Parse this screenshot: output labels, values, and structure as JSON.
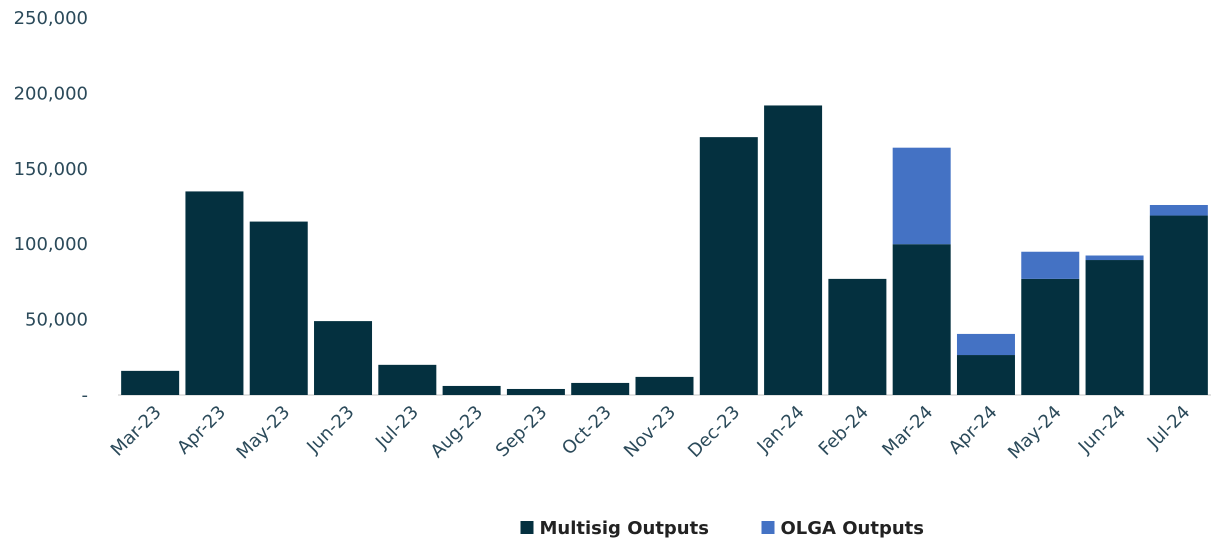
{
  "chart_data": {
    "type": "stacked_bar",
    "categories": [
      "Mar-23",
      "Apr-23",
      "May-23",
      "Jun-23",
      "Jul-23",
      "Aug-23",
      "Sep-23",
      "Oct-23",
      "Nov-23",
      "Dec-23",
      "Jan-24",
      "Feb-24",
      "Mar-24",
      "Apr-24",
      "May-24",
      "Jun-24",
      "Jul-24"
    ],
    "series": [
      {
        "name": "Multisig Outputs",
        "color": "#04303f",
        "values": [
          16000,
          135000,
          115000,
          49000,
          20000,
          6000,
          4000,
          8000,
          12000,
          171000,
          192000,
          77000,
          100000,
          26500,
          77000,
          89500,
          119000
        ]
      },
      {
        "name": "OLGA Outputs",
        "color": "#4472c4",
        "values": [
          0,
          0,
          0,
          0,
          0,
          0,
          0,
          0,
          0,
          0,
          0,
          0,
          64000,
          14000,
          18000,
          3000,
          7000
        ]
      }
    ],
    "ylim": [
      0,
      250000
    ],
    "yticks": [
      {
        "value": 0,
        "label": "-"
      },
      {
        "value": 50000,
        "label": "50,000"
      },
      {
        "value": 100000,
        "label": "100,000"
      },
      {
        "value": 150000,
        "label": "150,000"
      },
      {
        "value": 200000,
        "label": "200,000"
      },
      {
        "value": 250000,
        "label": "250,000"
      }
    ],
    "legend": "bottom"
  }
}
